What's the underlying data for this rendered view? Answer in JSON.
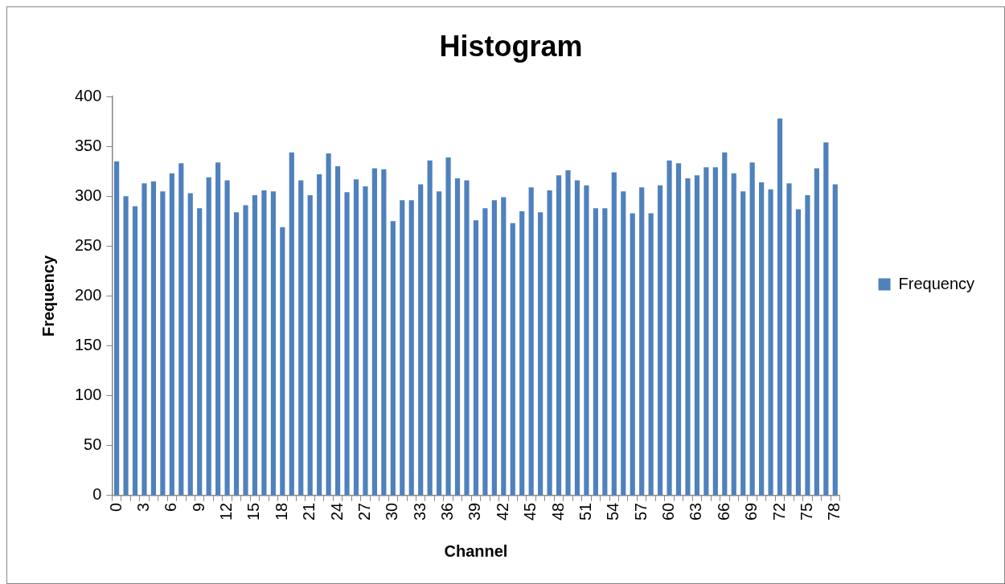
{
  "chart_data": {
    "type": "bar",
    "title": "Histogram",
    "xlabel": "Channel",
    "ylabel": "Frequency",
    "categories": [
      "0",
      null,
      null,
      "3",
      null,
      null,
      "6",
      null,
      null,
      "9",
      null,
      null,
      "12",
      null,
      null,
      "15",
      null,
      null,
      "18",
      null,
      null,
      "21",
      null,
      null,
      "24",
      null,
      null,
      "27",
      null,
      null,
      "30",
      null,
      null,
      "33",
      null,
      null,
      "36",
      null,
      null,
      "39",
      null,
      null,
      "42",
      null,
      null,
      "45",
      null,
      null,
      "48",
      null,
      null,
      "51",
      null,
      null,
      "54",
      null,
      null,
      "57",
      null,
      null,
      "60",
      null,
      null,
      "63",
      null,
      null,
      "66",
      null,
      null,
      "69",
      null,
      null,
      "72",
      null,
      null,
      "75",
      null,
      null,
      "78"
    ],
    "series": [
      {
        "name": "Frequency",
        "color": "#4f81bd",
        "values": [
          335,
          300,
          290,
          313,
          315,
          305,
          323,
          333,
          303,
          288,
          319,
          334,
          316,
          284,
          291,
          301,
          306,
          305,
          269,
          344,
          316,
          301,
          322,
          343,
          330,
          304,
          317,
          310,
          328,
          327,
          275,
          296,
          296,
          312,
          336,
          305,
          339,
          318,
          316,
          276,
          288,
          296,
          299,
          273,
          285,
          309,
          284,
          306,
          321,
          326,
          316,
          311,
          288,
          288,
          324,
          305,
          283,
          309,
          283,
          311,
          336,
          333,
          318,
          321,
          329,
          329,
          344,
          323,
          305,
          334,
          314,
          307,
          378,
          313,
          287,
          301,
          328,
          354,
          312
        ]
      }
    ],
    "ylim": [
      0,
      400
    ],
    "yticks": [
      0,
      50,
      100,
      150,
      200,
      250,
      300,
      350,
      400
    ],
    "grid": false,
    "legend": "right"
  }
}
